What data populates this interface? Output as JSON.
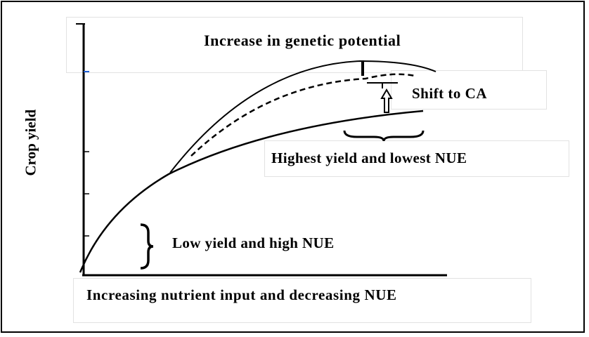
{
  "diagram": {
    "y_axis_label": "Crop yield",
    "x_axis_label": "Increasing nutrient input and decreasing NUE",
    "annotations": {
      "genetic_potential": "Increase in genetic potential",
      "shift_to_ca": "Shift to CA",
      "highest_yield": "Highest yield and lowest NUE",
      "low_yield": "Low yield and high NUE"
    },
    "curves": [
      "baseline",
      "conservation-agriculture",
      "genetic-potential"
    ],
    "colors": {
      "line": "#000000",
      "tick_accent": "#1f5fd6",
      "background": "#ffffff"
    }
  }
}
